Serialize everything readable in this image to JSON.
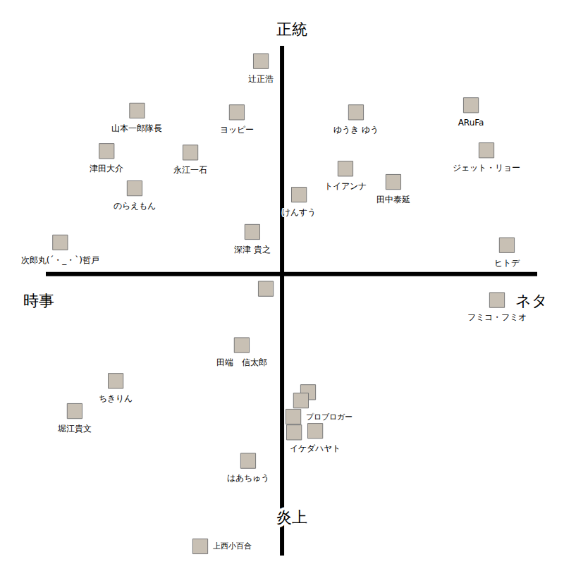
{
  "chart_data": {
    "type": "scatter",
    "axis_labels": {
      "top": "正統",
      "bottom": "炎上",
      "left": "時事",
      "right": "ネタ"
    },
    "xlim": [
      -96,
      104
    ],
    "ylim": [
      -115,
      93
    ],
    "xticks": [
      0
    ],
    "yticks": [
      0
    ],
    "tick_labels": false,
    "grid": false,
    "color": "#c8c0b4",
    "points": [
      {
        "name": "辻正浩",
        "x": -8.6,
        "y": 86.9
      },
      {
        "name": "山本一郎隊長",
        "x": -59.0,
        "y": 66.7
      },
      {
        "name": "ヨッピー",
        "x": -18.4,
        "y": 66.0
      },
      {
        "name": "ゆうき ゆう",
        "x": 30.1,
        "y": 66.0
      },
      {
        "name": "ARuFa",
        "x": 76.9,
        "y": 68.9
      },
      {
        "name": "ジェット・リョー",
        "x": 83.2,
        "y": 50.5
      },
      {
        "name": "津田大介",
        "x": -71.4,
        "y": 50.2
      },
      {
        "name": "永江一石",
        "x": -37.3,
        "y": 49.6
      },
      {
        "name": "のらえもん",
        "x": -60.0,
        "y": 35.0
      },
      {
        "name": "トイアンナ",
        "x": 25.8,
        "y": 43.0
      },
      {
        "name": "田中泰延",
        "x": 45.3,
        "y": 37.6
      },
      {
        "name": "けんすう",
        "x": 6.9,
        "y": 32.4
      },
      {
        "name": "深津 貴之",
        "x": -12.1,
        "y": 17.2
      },
      {
        "name": "次郎丸(´・_・`)哲戸",
        "x": -90.3,
        "y": 12.9
      },
      {
        "name": "ヒトデ",
        "x": 91.5,
        "y": 11.8
      },
      {
        "name": null,
        "x": -6.6,
        "y": -6.0
      },
      {
        "name": "フミコ・フミオ",
        "x": 87.5,
        "y": -10.6
      },
      {
        "name": "田端　信太郎",
        "x": -16.4,
        "y": -29.0
      },
      {
        "name": "ちきりん",
        "x": -67.7,
        "y": -43.6
      },
      {
        "name": "堀江貴文",
        "x": -84.4,
        "y": -55.9
      },
      {
        "name": null,
        "x": 10.6,
        "y": -48.2
      },
      {
        "name": null,
        "x": 7.7,
        "y": -51.6
      },
      {
        "name": "プロブロガー",
        "x": 4.6,
        "y": -58.2
      },
      {
        "name": null,
        "x": 4.9,
        "y": -64.6
      },
      {
        "name": "イケダハヤト",
        "x": 13.5,
        "y": -64.0
      },
      {
        "name": "はあちゅう",
        "x": -13.8,
        "y": -76.2
      },
      {
        "name": "上西小百合",
        "x": -33.3,
        "y": -111.1
      }
    ]
  }
}
